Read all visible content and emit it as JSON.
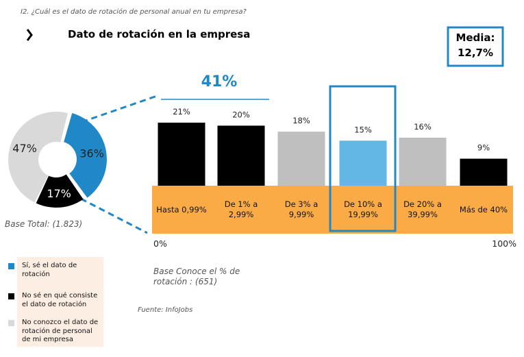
{
  "question": "I2. ¿Cuál es el dato de rotación de personal anual en tu empresa?",
  "title": "Dato de rotación en la empresa",
  "media_label": "Media:",
  "media_value": "12,7%",
  "source": "Fuente: InfoJobs",
  "chart_data": [
    {
      "type": "pie",
      "base_note": "Base Total: (1.823)",
      "series": [
        {
          "name": "Sí, sé el dato de rotación",
          "color": "#2088c6"
        },
        {
          "name": "No sé en qué consiste el dato de rotación",
          "color": "#000000"
        },
        {
          "name": "No conozco el dato de rotación de personal de mi empresa",
          "color": "#d9d9d9"
        }
      ],
      "values": [
        36,
        17,
        47
      ],
      "value_labels": [
        "36%",
        "17%",
        "47%"
      ]
    },
    {
      "type": "bar",
      "annotation": "41%",
      "base_note": "Base Conoce el % de\nrotación : (651)",
      "scale_labels": [
        "0%",
        "100%"
      ],
      "categories": [
        "Hasta 0,99%",
        "De 1% a\n2,99%",
        "De 3% a\n9,99%",
        "De 10% a\n19,99%",
        "De 20% a\n39,99%",
        "Más de 40%"
      ],
      "values": [
        21,
        20,
        18,
        15,
        16,
        9
      ],
      "value_labels": [
        "21%",
        "20%",
        "18%",
        "15%",
        "16%",
        "9%"
      ],
      "colors": [
        "#000000",
        "#000000",
        "#bfbfbf",
        "#63b7e4",
        "#bfbfbf",
        "#000000"
      ],
      "ylim": [
        0,
        21
      ]
    }
  ]
}
